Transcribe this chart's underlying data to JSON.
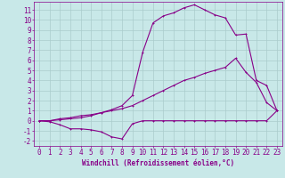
{
  "bg_color": "#c8e8e8",
  "line_color": "#880088",
  "grid_color": "#aacccc",
  "xlabel": "Windchill (Refroidissement éolien,°C)",
  "xlabel_fontsize": 5.5,
  "tick_fontsize": 5.5,
  "xlim": [
    -0.5,
    23.5
  ],
  "ylim": [
    -2.5,
    11.8
  ],
  "xticks": [
    0,
    1,
    2,
    3,
    4,
    5,
    6,
    7,
    8,
    9,
    10,
    11,
    12,
    13,
    14,
    15,
    16,
    17,
    18,
    19,
    20,
    21,
    22,
    23
  ],
  "yticks": [
    -2,
    -1,
    0,
    1,
    2,
    3,
    4,
    5,
    6,
    7,
    8,
    9,
    10,
    11
  ],
  "line1_x": [
    0,
    1,
    2,
    3,
    4,
    5,
    6,
    7,
    8,
    9,
    10,
    11,
    12,
    13,
    14,
    15,
    16,
    17,
    18,
    19,
    20,
    21,
    22,
    23
  ],
  "line1_y": [
    0,
    -0.1,
    -0.4,
    -0.8,
    -0.8,
    -0.9,
    -1.1,
    -1.6,
    -1.8,
    -0.3,
    0,
    0,
    0,
    0,
    0,
    0,
    0,
    0,
    0,
    0,
    0,
    0,
    0,
    1.0
  ],
  "line2_x": [
    0,
    1,
    2,
    3,
    4,
    5,
    6,
    7,
    8,
    9,
    10,
    11,
    12,
    13,
    14,
    15,
    16,
    17,
    18,
    19,
    20,
    21,
    22,
    23
  ],
  "line2_y": [
    0,
    0.0,
    0.2,
    0.3,
    0.5,
    0.6,
    0.8,
    1.0,
    1.2,
    1.5,
    2.0,
    2.5,
    3.0,
    3.5,
    4.0,
    4.3,
    4.7,
    5.0,
    5.3,
    6.2,
    4.8,
    3.8,
    1.8,
    1.0
  ],
  "line3_x": [
    0,
    1,
    2,
    3,
    4,
    5,
    6,
    7,
    8,
    9,
    10,
    11,
    12,
    13,
    14,
    15,
    16,
    17,
    18,
    19,
    20,
    21,
    22,
    23
  ],
  "line3_y": [
    0,
    0,
    0.1,
    0.2,
    0.3,
    0.5,
    0.8,
    1.1,
    1.5,
    2.5,
    6.8,
    9.7,
    10.4,
    10.7,
    11.2,
    11.5,
    11.0,
    10.5,
    10.2,
    8.5,
    8.6,
    4.0,
    3.5,
    1.0
  ]
}
